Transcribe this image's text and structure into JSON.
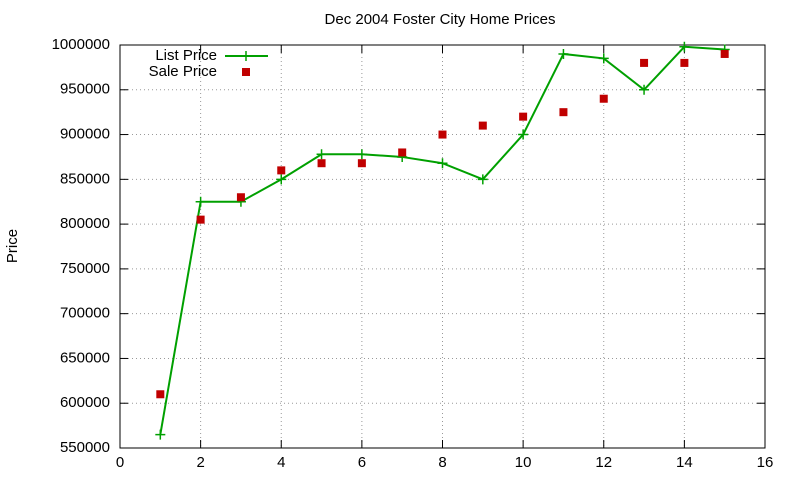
{
  "chart_data": {
    "type": "line",
    "title": "Dec 2004 Foster City Home Prices",
    "y_label": "Price",
    "x": [
      1,
      2,
      3,
      4,
      5,
      6,
      7,
      8,
      9,
      10,
      11,
      12,
      13,
      14,
      15
    ],
    "series": [
      {
        "name": "List Price",
        "color": "#00a000",
        "style": "linespoints",
        "values": [
          565000,
          825000,
          825000,
          850000,
          878000,
          878000,
          875000,
          868000,
          850000,
          900000,
          990000,
          985000,
          950000,
          998000,
          995000
        ]
      },
      {
        "name": "Sale Price",
        "color": "#c00000",
        "style": "points",
        "values": [
          610000,
          805000,
          830000,
          860000,
          868000,
          868000,
          880000,
          900000,
          910000,
          920000,
          925000,
          940000,
          980000,
          980000,
          990000
        ]
      }
    ],
    "xlim": [
      0,
      16
    ],
    "xticks": [
      0,
      2,
      4,
      6,
      8,
      10,
      12,
      14,
      16
    ],
    "ylim": [
      550000,
      1000000
    ],
    "yticks": [
      550000,
      600000,
      650000,
      700000,
      750000,
      800000,
      850000,
      900000,
      950000,
      1000000
    ],
    "grid": true,
    "legend": "top-left"
  }
}
